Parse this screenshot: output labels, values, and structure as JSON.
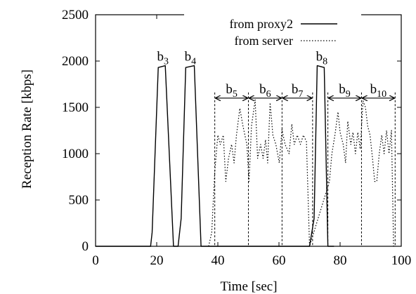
{
  "chart_data": {
    "type": "line",
    "title": "",
    "xlabel": "Time [sec]",
    "ylabel": "Reception Rate [kbps]",
    "xlim": [
      0,
      100
    ],
    "ylim": [
      0,
      2500
    ],
    "xticks": [
      0,
      20,
      40,
      60,
      80,
      100
    ],
    "yticks": [
      0,
      500,
      1000,
      1500,
      2000,
      2500
    ],
    "grid": false,
    "legend": "top-center",
    "series": [
      {
        "name": "from proxy2",
        "style": "solid",
        "points": [
          [
            0,
            0
          ],
          [
            18,
            0
          ],
          [
            18.5,
            150
          ],
          [
            20.5,
            1930
          ],
          [
            22.8,
            1950
          ],
          [
            25.5,
            0
          ],
          [
            27,
            0
          ],
          [
            28,
            300
          ],
          [
            29.5,
            1930
          ],
          [
            32.3,
            1950
          ],
          [
            34.5,
            0
          ],
          [
            36,
            0
          ],
          [
            70,
            0
          ],
          [
            71.5,
            300
          ],
          [
            72.5,
            1950
          ],
          [
            74.8,
            1930
          ],
          [
            76,
            0
          ],
          [
            78,
            0
          ]
        ]
      },
      {
        "name": "from server",
        "style": "dotted",
        "points": [
          [
            37,
            0
          ],
          [
            38,
            150
          ],
          [
            39,
            800
          ],
          [
            40,
            1200
          ],
          [
            40.8,
            1100
          ],
          [
            41.8,
            1200
          ],
          [
            42.6,
            700
          ],
          [
            43.5,
            950
          ],
          [
            44.5,
            1100
          ],
          [
            45.3,
            900
          ],
          [
            46.1,
            1200
          ],
          [
            47.2,
            1490
          ],
          [
            48.2,
            1300
          ],
          [
            49.5,
            1100
          ],
          [
            50.2,
            700
          ],
          [
            51,
            1300
          ],
          [
            52.2,
            1580
          ],
          [
            53,
            950
          ],
          [
            54,
            1100
          ],
          [
            54.8,
            950
          ],
          [
            55.6,
            1150
          ],
          [
            56.3,
            900
          ],
          [
            57.1,
            1550
          ],
          [
            58,
            1200
          ],
          [
            59,
            1100
          ],
          [
            60.1,
            900
          ],
          [
            61,
            1260
          ],
          [
            62,
            1100
          ],
          [
            63.3,
            1000
          ],
          [
            64.2,
            1320
          ],
          [
            65,
            1100
          ],
          [
            66,
            1200
          ],
          [
            67,
            1100
          ],
          [
            68,
            1200
          ],
          [
            69,
            1130
          ],
          [
            70,
            0
          ],
          [
            76.5,
            700
          ],
          [
            77.3,
            1000
          ],
          [
            78.3,
            1200
          ],
          [
            79.3,
            1450
          ],
          [
            80,
            1230
          ],
          [
            81,
            1100
          ],
          [
            81.8,
            900
          ],
          [
            82.5,
            1350
          ],
          [
            83.5,
            1100
          ],
          [
            84.2,
            1230
          ],
          [
            85,
            1000
          ],
          [
            85.8,
            1230
          ],
          [
            86.6,
            1050
          ],
          [
            87.5,
            1570
          ],
          [
            88.3,
            1500
          ],
          [
            89,
            1300
          ],
          [
            89.8,
            1200
          ],
          [
            90.6,
            950
          ],
          [
            91.3,
            700
          ],
          [
            92,
            700
          ],
          [
            92.8,
            1000
          ],
          [
            93.6,
            1200
          ],
          [
            94.4,
            1000
          ],
          [
            95.2,
            1250
          ],
          [
            96,
            1000
          ],
          [
            96.8,
            1250
          ],
          [
            97.5,
            0
          ]
        ]
      }
    ],
    "annotations": {
      "peak_labels": [
        {
          "base": "b",
          "sub": "3",
          "x": 22,
          "y": 1950
        },
        {
          "base": "b",
          "sub": "4",
          "x": 31,
          "y": 1950
        },
        {
          "base": "b",
          "sub": "8",
          "x": 74,
          "y": 1950
        }
      ],
      "boundaries": [
        39,
        50,
        61,
        71,
        76,
        87,
        98
      ],
      "span_y": 1600,
      "spans": [
        {
          "base": "b",
          "sub": "5",
          "from": 39,
          "to": 50
        },
        {
          "base": "b",
          "sub": "6",
          "from": 50,
          "to": 61
        },
        {
          "base": "b",
          "sub": "7",
          "from": 61,
          "to": 71
        },
        {
          "base": "b",
          "sub": "9",
          "from": 76,
          "to": 87
        },
        {
          "base": "b",
          "sub": "10",
          "from": 87,
          "to": 98
        }
      ]
    }
  }
}
